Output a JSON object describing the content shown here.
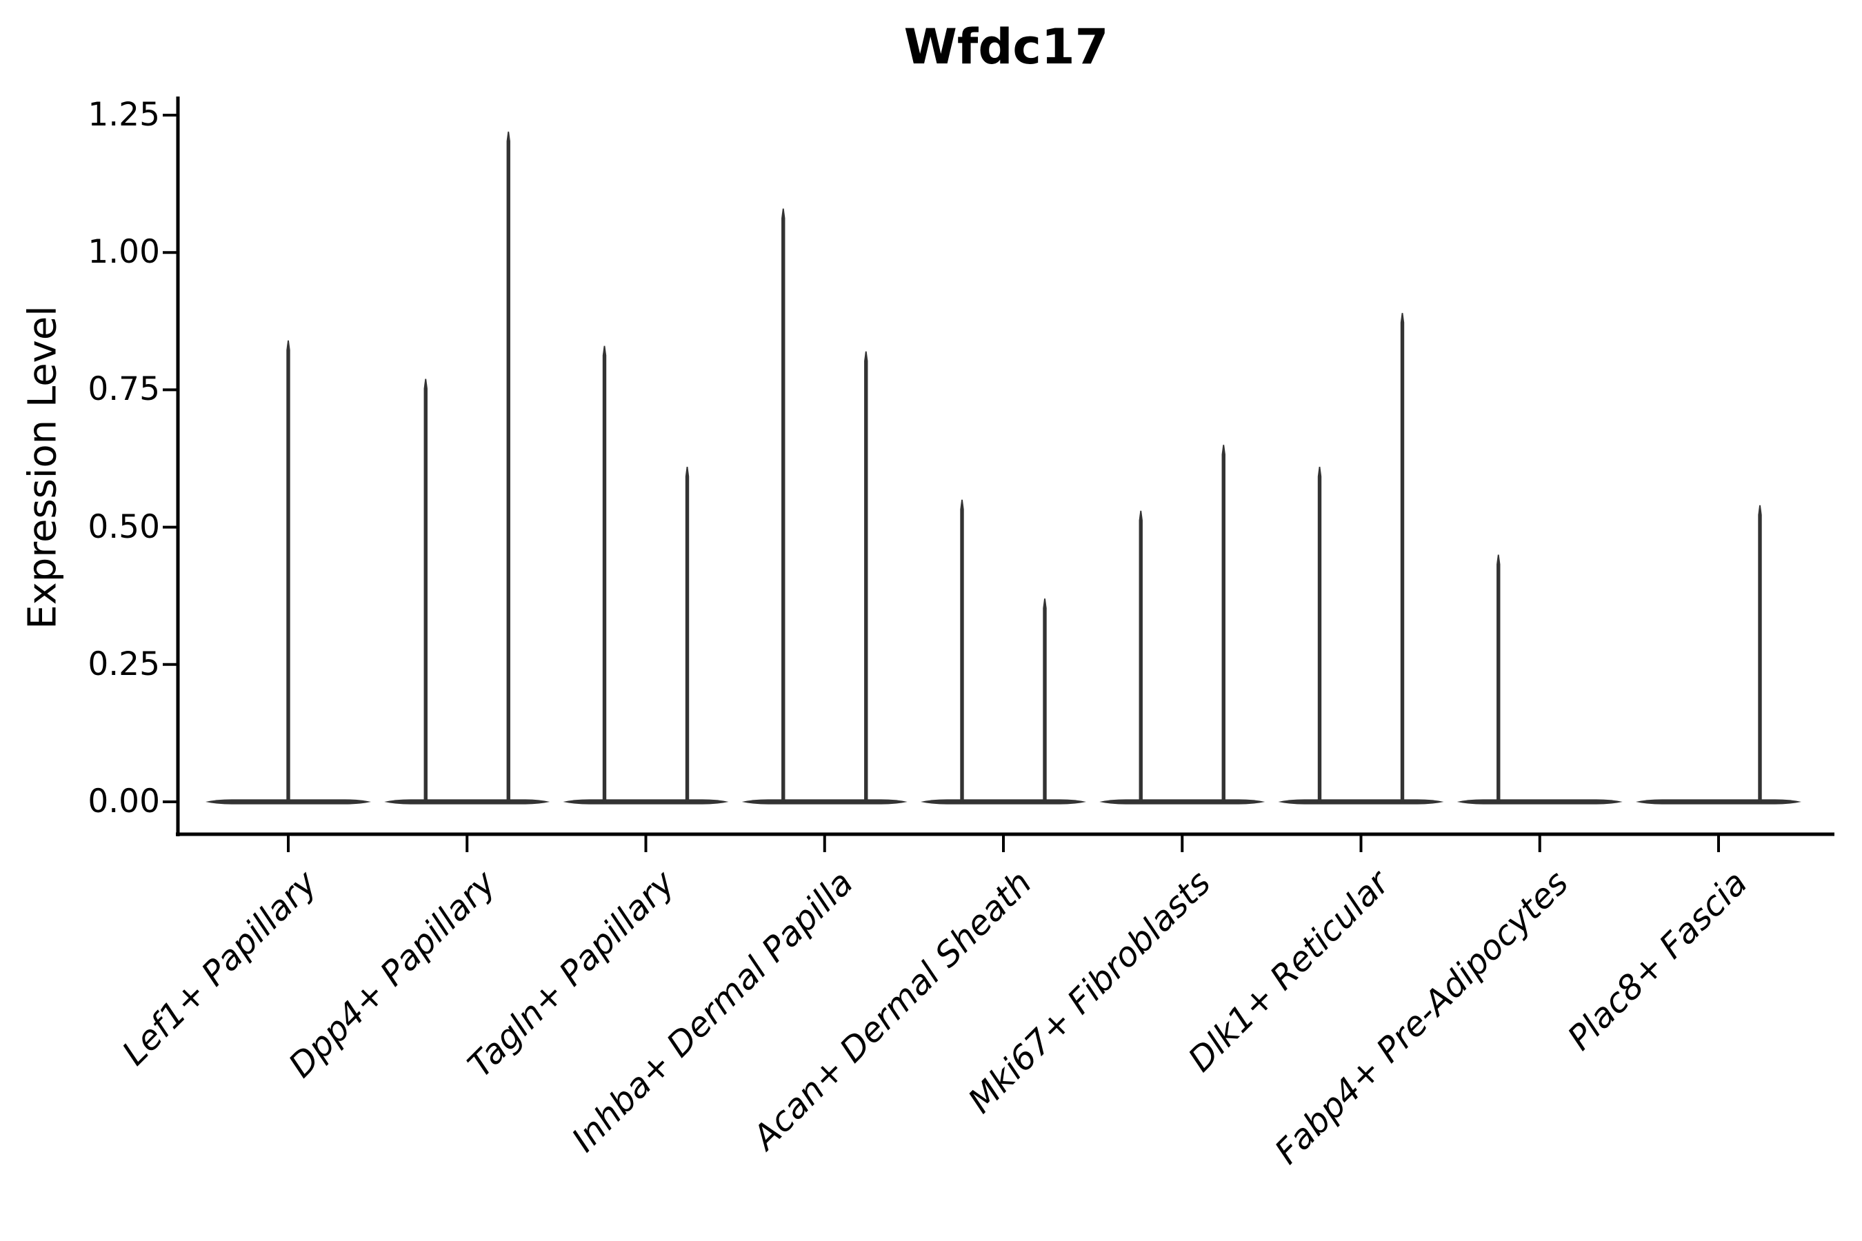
{
  "chart_data": {
    "type": "violin",
    "title": "Wfdc17",
    "ylabel": "Expression Level",
    "xlabel": "",
    "legend": null,
    "grid": false,
    "ylim": [
      -0.06,
      1.28
    ],
    "y_tick_values": [
      0.0,
      0.25,
      0.5,
      0.75,
      1.0,
      1.25
    ],
    "y_tick_labels": [
      "0.00",
      "0.25",
      "0.50",
      "0.75",
      "1.00",
      "1.25"
    ],
    "categories": [
      "Lef1+ Papillary",
      "Dpp4+ Papillary",
      "Tagln+ Papillary",
      "Inhba+ Dermal Papilla",
      "Acan+ Dermal Sheath",
      "Mki67+ Fibroblasts",
      "Dlk1+ Reticular",
      "Fabp4+ Pre-Adipocytes",
      "Plac8+ Fascia"
    ],
    "violins": [
      {
        "category": "Lef1+ Papillary",
        "base_value": 0.0,
        "spikes": [
          {
            "pos": 0.0,
            "max": 0.84
          }
        ]
      },
      {
        "category": "Dpp4+ Papillary",
        "base_value": 0.0,
        "spikes": [
          {
            "pos": -0.25,
            "max": 0.77
          },
          {
            "pos": 0.25,
            "max": 1.22
          }
        ]
      },
      {
        "category": "Tagln+ Papillary",
        "base_value": 0.0,
        "spikes": [
          {
            "pos": -0.25,
            "max": 0.83
          },
          {
            "pos": 0.25,
            "max": 0.61
          }
        ]
      },
      {
        "category": "Inhba+ Dermal Papilla",
        "base_value": 0.0,
        "spikes": [
          {
            "pos": -0.25,
            "max": 1.08
          },
          {
            "pos": 0.25,
            "max": 0.82
          }
        ]
      },
      {
        "category": "Acan+ Dermal Sheath",
        "base_value": 0.0,
        "spikes": [
          {
            "pos": -0.25,
            "max": 0.55
          },
          {
            "pos": 0.25,
            "max": 0.37
          }
        ]
      },
      {
        "category": "Mki67+ Fibroblasts",
        "base_value": 0.0,
        "spikes": [
          {
            "pos": -0.25,
            "max": 0.53
          },
          {
            "pos": 0.25,
            "max": 0.65
          }
        ]
      },
      {
        "category": "Dlk1+ Reticular",
        "base_value": 0.0,
        "spikes": [
          {
            "pos": -0.25,
            "max": 0.61
          },
          {
            "pos": 0.25,
            "max": 0.89
          }
        ]
      },
      {
        "category": "Fabp4+ Pre-Adipocytes",
        "base_value": 0.0,
        "spikes": [
          {
            "pos": -0.25,
            "max": 0.45
          }
        ]
      },
      {
        "category": "Plac8+ Fascia",
        "base_value": 0.0,
        "spikes": [
          {
            "pos": 0.25,
            "max": 0.54
          }
        ]
      }
    ],
    "colors": {
      "violin": "#333333",
      "axis": "#000000",
      "text": "#000000",
      "background": "#ffffff"
    }
  }
}
